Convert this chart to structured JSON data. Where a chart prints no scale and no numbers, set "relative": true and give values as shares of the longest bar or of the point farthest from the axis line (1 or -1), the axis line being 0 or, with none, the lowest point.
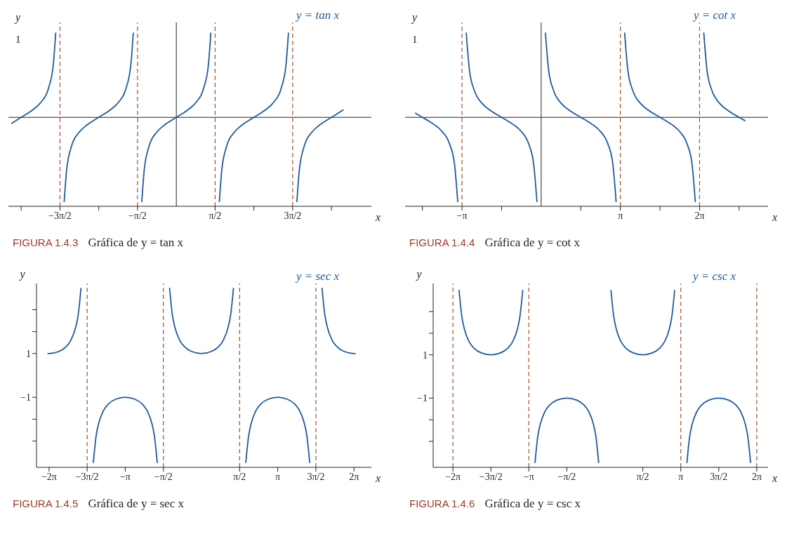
{
  "chart_data": [
    {
      "type": "line",
      "title": "FIGURA 1.4.3",
      "subtitle": "Gráfica de y = tan x",
      "xlabel": "x",
      "ylabel": "y",
      "annotations": [
        "y = tan x",
        "1"
      ],
      "xlim": [
        -6.8,
        7.9
      ],
      "relative": true,
      "xticks": [
        {
          "value": -6.2832,
          "label": null
        },
        {
          "value": -4.7124,
          "label": "−3π/2"
        },
        {
          "value": -3.1416,
          "label": null
        },
        {
          "value": -1.5708,
          "label": "−π/2"
        },
        {
          "value": 1.5708,
          "label": "π/2"
        },
        {
          "value": 3.1416,
          "label": null
        },
        {
          "value": 4.7124,
          "label": "3π/2"
        },
        {
          "value": 6.2832,
          "label": null
        }
      ],
      "grid": false,
      "legend": false,
      "marker": "none",
      "line_style": "solid",
      "ref_lines": [
        {
          "axis": "x",
          "value": -4.7124,
          "color": "#a0522d",
          "line_style": "dashed"
        },
        {
          "axis": "x",
          "value": -1.5708,
          "color": "#a0522d",
          "line_style": "dashed"
        },
        {
          "axis": "x",
          "value": 1.5708,
          "color": "#a0522d",
          "line_style": "dashed"
        },
        {
          "axis": "x",
          "value": 4.7124,
          "color": "#a0522d",
          "line_style": "dashed"
        }
      ],
      "series": [
        {
          "color": "#1f5b9c",
          "x": [
            -6.68,
            -6.533,
            -6.283,
            -6.033,
            -5.783,
            -5.483,
            -5.183,
            -4.983,
            -4.883
          ],
          "values": [
            -0.072,
            -0.045,
            0,
            0.045,
            0.095,
            0.178,
            0.338,
            0.621,
            1
          ]
        },
        {
          "color": "#1f5b9c",
          "x": [
            -4.542,
            -4.442,
            -4.242,
            -3.942,
            -3.642,
            -3.392,
            -3.142,
            -2.892,
            -2.642,
            -2.342,
            -2.042,
            -1.842,
            -1.742
          ],
          "values": [
            -1,
            -0.621,
            -0.338,
            -0.178,
            -0.095,
            -0.045,
            0,
            0.045,
            0.095,
            0.178,
            0.338,
            0.621,
            1
          ]
        },
        {
          "color": "#1f5b9c",
          "x": [
            -1.4,
            -1.3,
            -1.1,
            -0.8,
            -0.5,
            -0.25,
            0,
            0.25,
            0.5,
            0.8,
            1.1,
            1.3,
            1.4
          ],
          "values": [
            -1,
            -0.621,
            -0.338,
            -0.178,
            -0.095,
            -0.045,
            0,
            0.045,
            0.095,
            0.178,
            0.338,
            0.621,
            1
          ]
        },
        {
          "color": "#1f5b9c",
          "x": [
            1.742,
            1.842,
            2.042,
            2.342,
            2.642,
            2.892,
            3.142,
            3.392,
            3.642,
            3.942,
            4.242,
            4.442,
            4.542
          ],
          "values": [
            -1,
            -0.621,
            -0.338,
            -0.178,
            -0.095,
            -0.045,
            0,
            0.045,
            0.095,
            0.178,
            0.338,
            0.621,
            1
          ]
        },
        {
          "color": "#1f5b9c",
          "x": [
            4.883,
            4.983,
            5.183,
            5.483,
            5.783,
            6.033,
            6.283,
            6.533,
            6.77
          ],
          "values": [
            -1,
            -0.621,
            -0.338,
            -0.178,
            -0.095,
            -0.045,
            0,
            0.045,
            0.091
          ]
        }
      ]
    },
    {
      "type": "line",
      "title": "FIGURA 1.4.4",
      "subtitle": "Gráfica de y = cot x",
      "xlabel": "x",
      "ylabel": "y",
      "annotations": [
        "y = cot x",
        "1"
      ],
      "xlim": [
        -5.4,
        9
      ],
      "relative": true,
      "xticks": [
        {
          "value": -4.7124,
          "label": null
        },
        {
          "value": -3.1416,
          "label": "−π"
        },
        {
          "value": -1.5708,
          "label": null
        },
        {
          "value": 1.5708,
          "label": null
        },
        {
          "value": 3.1416,
          "label": "π"
        },
        {
          "value": 4.7124,
          "label": null
        },
        {
          "value": 6.2832,
          "label": "2π"
        },
        {
          "value": 7.854,
          "label": null
        }
      ],
      "grid": false,
      "legend": false,
      "marker": "none",
      "line_style": "solid",
      "ref_lines": [
        {
          "axis": "x",
          "value": -3.1416,
          "color": "#a0522d",
          "line_style": "dashed"
        },
        {
          "axis": "x",
          "value": 3.1416,
          "color": "#a0522d",
          "line_style": "dashed"
        },
        {
          "axis": "x",
          "value": 6.2832,
          "color": "#a0522d",
          "line_style": "dashed"
        }
      ],
      "series": [
        {
          "color": "#1f5b9c",
          "x": [
            -5.0,
            -4.713,
            -4.442,
            -4.241,
            -3.941,
            -3.641,
            -3.441,
            -3.309
          ],
          "values": [
            0.051,
            0,
            -0.047,
            -0.086,
            -0.164,
            -0.31,
            -0.547,
            -1
          ]
        },
        {
          "color": "#1f5b9c",
          "x": [
            -2.974,
            -2.842,
            -2.642,
            -2.342,
            -2.042,
            -1.842,
            -1.571,
            -1.301,
            -1.1,
            -0.8,
            -0.5,
            -0.3,
            -0.168
          ],
          "values": [
            1,
            0.547,
            0.31,
            0.164,
            0.086,
            0.047,
            0,
            -0.047,
            -0.086,
            -0.164,
            -0.31,
            -0.547,
            -1
          ]
        },
        {
          "color": "#1f5b9c",
          "x": [
            0.168,
            0.3,
            0.5,
            0.8,
            1.1,
            1.3,
            1.571,
            1.841,
            2.042,
            2.342,
            2.642,
            2.842,
            2.974
          ],
          "values": [
            1,
            0.547,
            0.31,
            0.164,
            0.086,
            0.047,
            0,
            -0.047,
            -0.086,
            -0.164,
            -0.31,
            -0.547,
            -1
          ]
        },
        {
          "color": "#1f5b9c",
          "x": [
            3.31,
            3.442,
            3.642,
            3.942,
            4.242,
            4.442,
            4.713,
            4.983,
            5.184,
            5.484,
            5.784,
            5.984,
            6.116
          ],
          "values": [
            1,
            0.547,
            0.31,
            0.164,
            0.086,
            0.047,
            0,
            -0.047,
            -0.086,
            -0.164,
            -0.31,
            -0.547,
            -1
          ]
        },
        {
          "color": "#1f5b9c",
          "x": [
            6.451,
            6.583,
            6.783,
            7.083,
            7.383,
            7.583,
            7.854,
            8.1
          ],
          "values": [
            1,
            0.547,
            0.31,
            0.164,
            0.086,
            0.047,
            0,
            -0.042
          ]
        }
      ]
    },
    {
      "type": "line",
      "title": "FIGURA 1.4.5",
      "subtitle": "Gráfica de y = sec x",
      "xlabel": "x",
      "ylabel": "y",
      "annotations": [
        "y = sec x"
      ],
      "xlim": [
        -6.8,
        7
      ],
      "ylim": [
        -4.2,
        4.2
      ],
      "xticks": [
        {
          "value": -6.2832,
          "label": "−2π"
        },
        {
          "value": -4.7124,
          "label": "−3π/2"
        },
        {
          "value": -3.1416,
          "label": "−π"
        },
        {
          "value": -1.5708,
          "label": "−π/2"
        },
        {
          "value": 1.5708,
          "label": "π/2"
        },
        {
          "value": 3.1416,
          "label": "π"
        },
        {
          "value": 4.7124,
          "label": "3π/2"
        },
        {
          "value": 6.2832,
          "label": "2π"
        }
      ],
      "yticks": [
        {
          "value": -3,
          "label": null
        },
        {
          "value": -2,
          "label": null
        },
        {
          "value": -1,
          "label": "−1"
        },
        1,
        {
          "value": 2,
          "label": null
        },
        {
          "value": 3,
          "label": null
        }
      ],
      "grid": false,
      "legend": false,
      "marker": "none",
      "line_style": "solid",
      "ref_lines": [
        {
          "axis": "x",
          "value": -4.7124,
          "color": "#a0522d",
          "line_style": "dashed"
        },
        {
          "axis": "x",
          "value": -1.5708,
          "color": "#a0522d",
          "line_style": "dashed"
        },
        {
          "axis": "x",
          "value": 1.5708,
          "color": "#a0522d",
          "line_style": "dashed"
        },
        {
          "axis": "x",
          "value": 4.7124,
          "color": "#a0522d",
          "line_style": "dashed"
        }
      ],
      "series": [
        {
          "color": "#1f5b9c",
          "x": [
            -6.35,
            -6.283,
            -5.883,
            -5.583,
            -5.383,
            -5.183,
            -5.083,
            -4.965
          ],
          "values": [
            1,
            1,
            1.09,
            1.31,
            1.61,
            2.21,
            2.76,
            4.0
          ]
        },
        {
          "color": "#1f5b9c",
          "x": [
            -4.46,
            -4.342,
            -4.242,
            -4.042,
            -3.842,
            -3.542,
            -3.142,
            -2.742,
            -2.442,
            -2.242,
            -2.042,
            -1.942,
            -1.824
          ],
          "values": [
            -4.0,
            -2.76,
            -2.21,
            -1.61,
            -1.31,
            -1.09,
            -1,
            -1.09,
            -1.31,
            -1.61,
            -2.21,
            -2.76,
            -4.0
          ]
        },
        {
          "color": "#1f5b9c",
          "x": [
            -1.318,
            -1.2,
            -1.1,
            -0.9,
            -0.7,
            -0.4,
            0,
            0.4,
            0.7,
            0.9,
            1.1,
            1.2,
            1.318
          ],
          "values": [
            4.0,
            2.76,
            2.21,
            1.61,
            1.31,
            1.09,
            1,
            1.09,
            1.31,
            1.61,
            2.21,
            2.76,
            4.0
          ]
        },
        {
          "color": "#1f5b9c",
          "x": [
            1.824,
            1.942,
            2.042,
            2.242,
            2.442,
            2.742,
            3.142,
            3.542,
            3.842,
            4.042,
            4.242,
            4.342,
            4.46
          ],
          "values": [
            -4.0,
            -2.76,
            -2.21,
            -1.61,
            -1.31,
            -1.09,
            -1,
            -1.09,
            -1.31,
            -1.61,
            -2.21,
            -2.76,
            -4.0
          ]
        },
        {
          "color": "#1f5b9c",
          "x": [
            4.965,
            5.083,
            5.183,
            5.383,
            5.583,
            5.883,
            6.283,
            6.35
          ],
          "values": [
            4.0,
            2.76,
            2.21,
            1.61,
            1.31,
            1.09,
            1,
            1
          ]
        }
      ]
    },
    {
      "type": "line",
      "title": "FIGURA 1.4.6",
      "subtitle": "Gráfica de y = csc x",
      "xlabel": "x",
      "ylabel": "y",
      "annotations": [
        "y = csc x"
      ],
      "xlim": [
        -7.1,
        6.75
      ],
      "ylim": [
        -4.2,
        4.3
      ],
      "xticks": [
        {
          "value": -6.2832,
          "label": "−2π"
        },
        {
          "value": -4.7124,
          "label": "−3π/2"
        },
        {
          "value": -3.1416,
          "label": "−π"
        },
        {
          "value": -1.5708,
          "label": "−π/2"
        },
        {
          "value": 1.5708,
          "label": "π/2"
        },
        {
          "value": 3.1416,
          "label": "π"
        },
        {
          "value": 4.7124,
          "label": "3π/2"
        },
        {
          "value": 6.2832,
          "label": "2π"
        }
      ],
      "yticks": [
        {
          "value": -3,
          "label": null
        },
        {
          "value": -2,
          "label": null
        },
        {
          "value": -1,
          "label": "−1"
        },
        1,
        {
          "value": 2,
          "label": null
        },
        {
          "value": 3,
          "label": null
        }
      ],
      "grid": false,
      "legend": false,
      "marker": "none",
      "line_style": "solid",
      "ref_lines": [
        {
          "axis": "x",
          "value": -6.2832,
          "color": "#a0522d",
          "line_style": "dashed"
        },
        {
          "axis": "x",
          "value": -3.1416,
          "color": "#a0522d",
          "line_style": "dashed"
        },
        {
          "axis": "x",
          "value": 3.1416,
          "color": "#a0522d",
          "line_style": "dashed"
        },
        {
          "axis": "x",
          "value": 6.2832,
          "color": "#a0522d",
          "line_style": "dashed"
        }
      ],
      "series": [
        {
          "color": "#1f5b9c",
          "x": [
            -6.03,
            -5.912,
            -5.812,
            -5.612,
            -5.412,
            -5.112,
            -4.712,
            -4.312,
            -4.012,
            -3.812,
            -3.612,
            -3.512,
            -3.394
          ],
          "values": [
            4.0,
            2.76,
            2.21,
            1.61,
            1.31,
            1.09,
            1,
            1.09,
            1.31,
            1.61,
            2.21,
            2.76,
            4.0
          ]
        },
        {
          "color": "#1f5b9c",
          "x": [
            -2.889,
            -2.771,
            -2.671,
            -2.471,
            -2.271,
            -1.971,
            -1.571,
            -1.171,
            -0.871,
            -0.671,
            -0.471,
            -0.371,
            -0.253
          ],
          "values": [
            -4.0,
            -2.76,
            -2.21,
            -1.61,
            -1.31,
            -1.09,
            -1,
            -1.09,
            -1.31,
            -1.61,
            -2.21,
            -2.76,
            -4.0
          ]
        },
        {
          "color": "#1f5b9c",
          "x": [
            0.253,
            0.371,
            0.471,
            0.671,
            0.871,
            1.171,
            1.571,
            1.971,
            2.271,
            2.471,
            2.671,
            2.771,
            2.889
          ],
          "values": [
            4.0,
            2.76,
            2.21,
            1.61,
            1.31,
            1.09,
            1,
            1.09,
            1.31,
            1.61,
            2.21,
            2.76,
            4.0
          ]
        },
        {
          "color": "#1f5b9c",
          "x": [
            3.394,
            3.512,
            3.612,
            3.812,
            4.012,
            4.312,
            4.712,
            5.112,
            5.412,
            5.612,
            5.812,
            5.912,
            6.03
          ],
          "values": [
            -4.0,
            -2.76,
            -2.21,
            -1.61,
            -1.31,
            -1.09,
            -1,
            -1.09,
            -1.31,
            -1.61,
            -2.21,
            -2.76,
            -4.0
          ]
        }
      ]
    }
  ]
}
